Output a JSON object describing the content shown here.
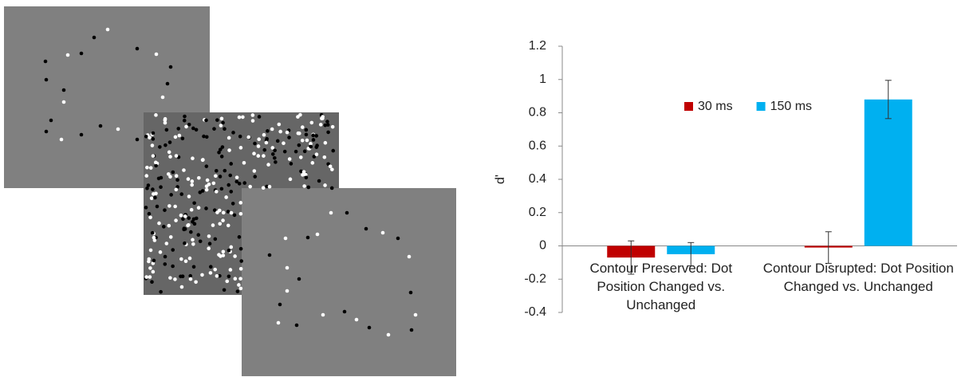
{
  "chart_data": {
    "type": "bar",
    "ylabel": "d'",
    "categories": [
      "Contour Preserved: Dot Position Changed vs. Unchanged",
      "Contour Disrupted: Dot Position Changed vs. Unchanged"
    ],
    "series": [
      {
        "name": "30 ms",
        "color": "#c00000",
        "values": [
          -0.07,
          -0.01
        ],
        "errors": [
          0.1,
          0.095
        ]
      },
      {
        "name": "150 ms",
        "color": "#00b0f0",
        "values": [
          -0.05,
          0.88
        ],
        "errors": [
          0.07,
          0.115
        ]
      }
    ],
    "ylim": [
      -0.4,
      1.2
    ],
    "yticks": [
      -0.4,
      -0.2,
      0,
      0.2,
      0.4,
      0.6,
      0.8,
      1,
      1.2
    ],
    "legend": "top"
  }
}
